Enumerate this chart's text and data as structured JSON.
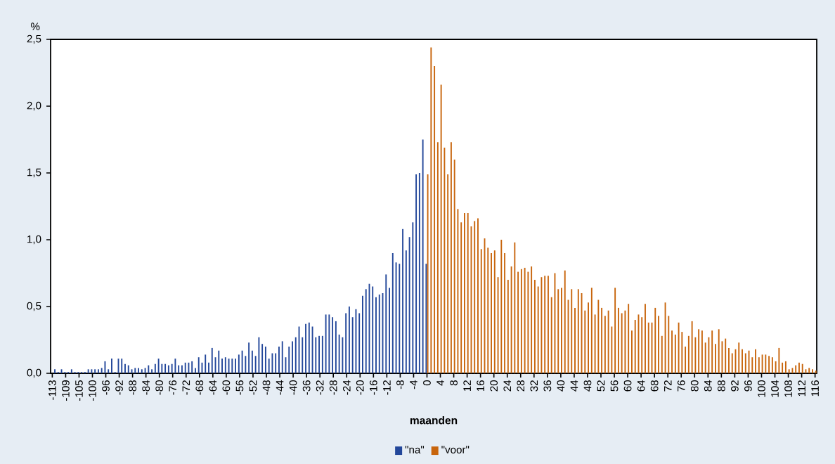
{
  "chart_data": {
    "type": "bar",
    "xlabel": "maanden",
    "ylabel": "%",
    "categories": [
      "-113",
      null,
      null,
      null,
      "-109",
      null,
      null,
      null,
      "-105",
      null,
      null,
      null,
      "-100",
      null,
      null,
      null,
      "-96",
      null,
      null,
      null,
      "-92",
      null,
      null,
      null,
      "-88",
      null,
      null,
      null,
      "-84",
      null,
      null,
      null,
      "-80",
      null,
      null,
      null,
      "-76",
      null,
      null,
      null,
      "-72",
      null,
      null,
      null,
      "-68",
      null,
      null,
      null,
      "-64",
      null,
      null,
      null,
      "-60",
      null,
      null,
      null,
      "-56",
      null,
      null,
      null,
      "-52",
      null,
      null,
      null,
      "-48",
      null,
      null,
      null,
      "-44",
      null,
      null,
      null,
      "-40",
      null,
      null,
      null,
      "-36",
      null,
      null,
      null,
      "-32",
      null,
      null,
      null,
      "-28",
      null,
      null,
      null,
      "-24",
      null,
      null,
      null,
      "-20",
      null,
      null,
      null,
      "-16",
      null,
      null,
      null,
      "-12",
      null,
      null,
      null,
      "-8",
      null,
      null,
      null,
      "-4",
      null,
      null,
      null,
      "0",
      null,
      null,
      null,
      "4",
      null,
      null,
      null,
      "8",
      null,
      null,
      null,
      "12",
      null,
      null,
      null,
      "16",
      null,
      null,
      null,
      "20",
      null,
      null,
      null,
      "24",
      null,
      null,
      null,
      "28",
      null,
      null,
      null,
      "32",
      null,
      null,
      null,
      "36",
      null,
      null,
      null,
      "40",
      null,
      null,
      null,
      "44",
      null,
      null,
      null,
      "48",
      null,
      null,
      null,
      "52",
      null,
      null,
      null,
      "56",
      null,
      null,
      null,
      "60",
      null,
      null,
      null,
      "64",
      null,
      null,
      null,
      "68",
      null,
      null,
      null,
      "72",
      null,
      null,
      null,
      "76",
      null,
      null,
      null,
      "80",
      null,
      null,
      null,
      "84",
      null,
      null,
      null,
      "88",
      null,
      null,
      null,
      "92",
      null,
      null,
      null,
      "96",
      null,
      null,
      null,
      "100",
      null,
      null,
      null,
      "104",
      null,
      null,
      null,
      "108",
      null,
      null,
      null,
      "112",
      null,
      null,
      null,
      "116"
    ],
    "series": [
      {
        "name": "\"na\"",
        "color": "#23479a",
        "values": [
          null,
          0.03,
          0.01,
          0.03,
          0.01,
          0.01,
          0.03,
          0.01,
          0.01,
          0.01,
          0.01,
          0.03,
          0.03,
          0.03,
          0.03,
          0.04,
          0.09,
          0.03,
          0.11,
          0.01,
          0.11,
          0.11,
          0.07,
          0.06,
          0.03,
          0.04,
          0.04,
          0.03,
          0.04,
          0.06,
          0.03,
          0.07,
          0.11,
          0.07,
          0.07,
          0.06,
          0.07,
          0.11,
          0.06,
          0.06,
          0.08,
          0.08,
          0.09,
          0.04,
          0.12,
          0.08,
          0.14,
          0.08,
          0.19,
          0.12,
          0.17,
          0.11,
          0.12,
          0.11,
          0.11,
          0.11,
          0.14,
          0.17,
          0.13,
          0.23,
          0.17,
          0.13,
          0.27,
          0.22,
          0.2,
          0.11,
          0.15,
          0.15,
          0.2,
          0.24,
          0.12,
          0.2,
          0.24,
          0.27,
          0.35,
          0.27,
          0.37,
          0.38,
          0.35,
          0.27,
          0.28,
          0.28,
          0.44,
          0.44,
          0.42,
          0.39,
          0.29,
          0.27,
          0.45,
          0.5,
          0.42,
          0.48,
          0.45,
          0.58,
          0.63,
          0.67,
          0.65,
          0.57,
          0.59,
          0.6,
          0.74,
          0.64,
          0.9,
          0.83,
          0.82,
          1.08,
          0.92,
          1.02,
          1.13,
          1.49,
          1.5,
          1.75,
          0.82,
          null,
          null,
          null,
          null,
          null,
          null,
          null,
          null,
          null,
          null,
          null,
          null,
          null,
          null,
          null,
          null,
          null,
          null,
          null,
          null,
          null,
          null,
          null,
          null,
          null,
          null,
          null,
          null,
          null,
          null,
          null,
          null,
          null,
          null,
          null,
          null,
          null,
          null,
          null,
          null,
          null,
          null,
          null,
          null,
          null,
          null,
          null,
          null,
          null,
          null,
          null,
          null,
          null,
          null,
          null,
          null,
          null,
          null,
          null,
          null,
          null,
          null,
          null,
          null,
          null,
          null,
          null,
          null,
          null,
          null,
          null,
          null,
          null,
          null,
          null,
          null,
          null,
          null,
          null,
          null,
          null,
          null,
          null,
          null,
          null,
          null,
          null,
          null,
          null,
          null,
          null,
          null,
          null,
          null,
          null,
          null,
          null,
          null,
          null,
          null,
          null,
          null,
          null,
          null,
          null,
          null,
          null,
          null,
          null,
          null,
          null,
          null,
          null,
          null,
          null,
          null
        ]
      },
      {
        "name": "\"voor\"",
        "color": "#c8650c",
        "values": [
          null,
          null,
          null,
          null,
          null,
          null,
          null,
          null,
          null,
          null,
          null,
          null,
          null,
          null,
          null,
          null,
          null,
          null,
          null,
          null,
          null,
          null,
          null,
          null,
          null,
          null,
          null,
          null,
          null,
          null,
          null,
          null,
          null,
          null,
          null,
          null,
          null,
          null,
          null,
          null,
          null,
          null,
          null,
          null,
          null,
          null,
          null,
          null,
          null,
          null,
          null,
          null,
          null,
          null,
          null,
          null,
          null,
          null,
          null,
          null,
          null,
          null,
          null,
          null,
          null,
          null,
          null,
          null,
          null,
          null,
          null,
          null,
          null,
          null,
          null,
          null,
          null,
          null,
          null,
          null,
          null,
          null,
          null,
          null,
          null,
          null,
          null,
          null,
          null,
          null,
          null,
          null,
          null,
          null,
          null,
          null,
          null,
          null,
          null,
          null,
          null,
          null,
          null,
          null,
          null,
          null,
          null,
          null,
          null,
          null,
          null,
          null,
          1.49,
          2.44,
          2.3,
          1.73,
          2.16,
          1.69,
          1.49,
          1.73,
          1.6,
          1.23,
          1.13,
          1.2,
          1.2,
          1.1,
          1.14,
          1.16,
          0.93,
          1.01,
          0.94,
          0.9,
          0.92,
          0.72,
          1.0,
          0.9,
          0.7,
          0.8,
          0.98,
          0.76,
          0.78,
          0.79,
          0.76,
          0.8,
          0.7,
          0.65,
          0.72,
          0.73,
          0.73,
          0.57,
          0.75,
          0.63,
          0.64,
          0.77,
          0.55,
          0.63,
          0.49,
          0.63,
          0.6,
          0.47,
          0.53,
          0.64,
          0.44,
          0.55,
          0.49,
          0.43,
          0.47,
          0.35,
          0.64,
          0.49,
          0.45,
          0.47,
          0.52,
          0.32,
          0.4,
          0.44,
          0.42,
          0.52,
          0.38,
          0.38,
          0.49,
          0.43,
          0.28,
          0.53,
          0.43,
          0.32,
          0.29,
          0.38,
          0.31,
          0.2,
          0.28,
          0.39,
          0.27,
          0.33,
          0.32,
          0.23,
          0.27,
          0.32,
          0.22,
          0.33,
          0.24,
          0.26,
          0.19,
          0.15,
          0.18,
          0.23,
          0.18,
          0.15,
          0.17,
          0.12,
          0.18,
          0.12,
          0.14,
          0.14,
          0.13,
          0.12,
          0.09,
          0.19,
          0.08,
          0.09,
          0.03,
          0.04,
          0.06,
          0.08,
          0.07,
          0.03,
          0.04,
          0.03,
          0.02
        ]
      }
    ],
    "ylim": [
      0,
      2.5
    ],
    "yticks": [
      {
        "value": 0,
        "label": "0,0"
      },
      {
        "value": 0.5,
        "label": "0,5"
      },
      {
        "value": 1,
        "label": "1,0"
      },
      {
        "value": 1.5,
        "label": "1,5"
      },
      {
        "value": 2,
        "label": "2,0"
      },
      {
        "value": 2.5,
        "label": "2,5"
      }
    ],
    "legend": "bottom"
  }
}
